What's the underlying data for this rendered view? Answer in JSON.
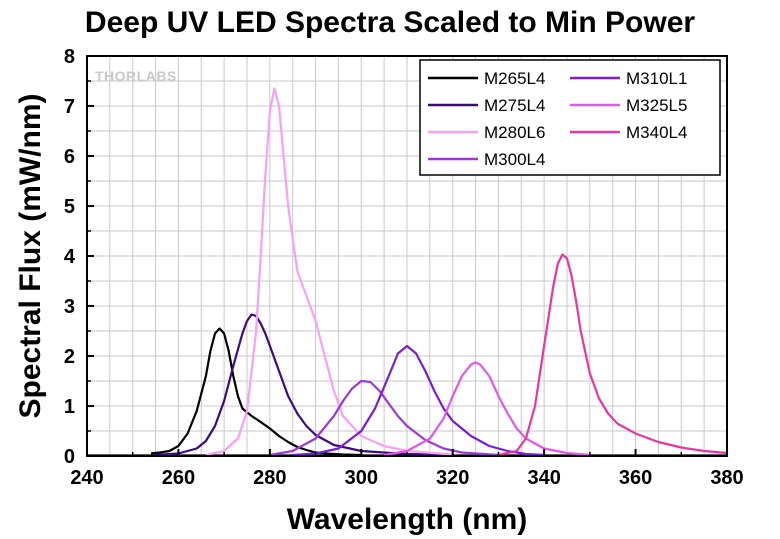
{
  "chart_data": {
    "type": "line",
    "title": "Deep UV LED Spectra Scaled to Min Power",
    "xlabel": "Wavelength (nm)",
    "ylabel": "Spectral Flux (mW/nm)",
    "xlim": [
      240,
      380
    ],
    "ylim": [
      0,
      8
    ],
    "xticks": [
      240,
      260,
      280,
      300,
      320,
      340,
      360,
      380
    ],
    "yticks": [
      0,
      1,
      2,
      3,
      4,
      5,
      6,
      7,
      8
    ],
    "grid": true,
    "legend_position": "top-right",
    "watermark": "THORLABS",
    "series": [
      {
        "name": "M265L4",
        "color": "#000000",
        "x": [
          254,
          256,
          258,
          260,
          262,
          264,
          266,
          267,
          268,
          269,
          270,
          271,
          272,
          273,
          274,
          276,
          278,
          280,
          282,
          284,
          286,
          288,
          290,
          292,
          296,
          300
        ],
        "y": [
          0.05,
          0.07,
          0.1,
          0.2,
          0.45,
          0.9,
          1.6,
          2.1,
          2.45,
          2.55,
          2.45,
          2.1,
          1.6,
          1.2,
          0.95,
          0.8,
          0.68,
          0.55,
          0.4,
          0.28,
          0.18,
          0.12,
          0.07,
          0.05,
          0.03,
          0.02
        ]
      },
      {
        "name": "M275L4",
        "color": "#3d0a80",
        "x": [
          255,
          260,
          264,
          266,
          268,
          270,
          272,
          274,
          275,
          276,
          277,
          278,
          279,
          280,
          282,
          284,
          286,
          288,
          290,
          294,
          300,
          310,
          320
        ],
        "y": [
          0.02,
          0.05,
          0.15,
          0.3,
          0.6,
          1.1,
          1.8,
          2.45,
          2.7,
          2.83,
          2.8,
          2.65,
          2.45,
          2.2,
          1.7,
          1.2,
          0.85,
          0.6,
          0.42,
          0.22,
          0.1,
          0.04,
          0.02
        ]
      },
      {
        "name": "M280L6",
        "color": "#f7a0f4",
        "x": [
          266,
          270,
          273,
          275,
          277,
          278,
          279,
          280,
          281,
          282,
          283,
          284,
          286,
          288,
          290,
          292,
          294,
          296,
          300,
          305,
          310,
          320
        ],
        "y": [
          0.02,
          0.1,
          0.35,
          0.9,
          2.5,
          4.0,
          5.6,
          6.9,
          7.35,
          7.0,
          6.0,
          5.0,
          3.7,
          3.2,
          2.7,
          2.0,
          1.3,
          0.8,
          0.4,
          0.2,
          0.1,
          0.03
        ]
      },
      {
        "name": "M300L4",
        "color": "#9a3ad6",
        "x": [
          280,
          285,
          290,
          294,
          296,
          298,
          300,
          302,
          304,
          306,
          308,
          310,
          314,
          318,
          322,
          330
        ],
        "y": [
          0.02,
          0.1,
          0.35,
          0.8,
          1.1,
          1.35,
          1.5,
          1.48,
          1.3,
          1.05,
          0.8,
          0.6,
          0.32,
          0.15,
          0.07,
          0.02
        ]
      },
      {
        "name": "M310L1",
        "color": "#7a1ed6",
        "x": [
          285,
          290,
          295,
          300,
          303,
          306,
          308,
          310,
          312,
          314,
          316,
          318,
          320,
          324,
          328,
          332,
          336,
          340
        ],
        "y": [
          0.02,
          0.05,
          0.15,
          0.5,
          0.95,
          1.6,
          2.05,
          2.2,
          2.05,
          1.7,
          1.3,
          0.95,
          0.7,
          0.4,
          0.2,
          0.1,
          0.04,
          0.02
        ]
      },
      {
        "name": "M325L5",
        "color": "#e257ea",
        "x": [
          305,
          310,
          315,
          318,
          320,
          322,
          324,
          325,
          326,
          328,
          330,
          332,
          334,
          336,
          340,
          345,
          350
        ],
        "y": [
          0.02,
          0.1,
          0.35,
          0.75,
          1.2,
          1.6,
          1.83,
          1.87,
          1.83,
          1.6,
          1.2,
          0.85,
          0.55,
          0.35,
          0.15,
          0.06,
          0.02
        ]
      },
      {
        "name": "M340L4",
        "color": "#e8369f",
        "x": [
          330,
          334,
          336,
          338,
          340,
          342,
          343,
          344,
          345,
          346,
          347,
          348,
          350,
          352,
          354,
          356,
          360,
          365,
          370,
          375,
          380
        ],
        "y": [
          0.02,
          0.1,
          0.35,
          1.0,
          2.2,
          3.4,
          3.85,
          4.03,
          3.95,
          3.6,
          3.1,
          2.5,
          1.65,
          1.15,
          0.85,
          0.65,
          0.45,
          0.28,
          0.17,
          0.1,
          0.06
        ]
      }
    ]
  }
}
